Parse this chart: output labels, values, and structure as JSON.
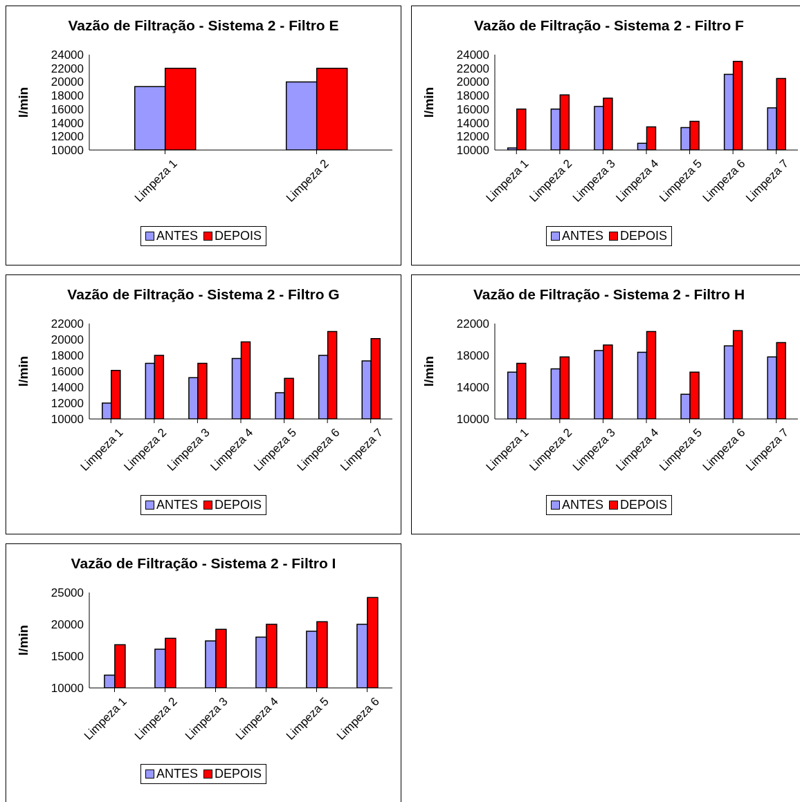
{
  "chart_data": [
    {
      "type": "bar",
      "title": "Vazão de Filtração - Sistema 2 - Filtro E",
      "ylabel": "l/min",
      "categories": [
        "Limpeza 1",
        "Limpeza 2"
      ],
      "series": [
        {
          "name": "ANTES",
          "color": "#9999ff",
          "values": [
            19300,
            20000
          ]
        },
        {
          "name": "DEPOIS",
          "color": "#ff0000",
          "values": [
            22000,
            22000
          ]
        }
      ],
      "ylim": [
        10000,
        24000
      ],
      "yticks": [
        10000,
        12000,
        14000,
        16000,
        18000,
        20000,
        22000,
        24000
      ],
      "grid": false,
      "legend": "bottom"
    },
    {
      "type": "bar",
      "title": "Vazão de Filtração - Sistema 2 - Filtro F",
      "ylabel": "l/min",
      "categories": [
        "Limpeza 1",
        "Limpeza 2",
        "Limpeza 3",
        "Limpeza 4",
        "Limpeza 5",
        "Limpeza 6",
        "Limpeza 7"
      ],
      "series": [
        {
          "name": "ANTES",
          "color": "#9999ff",
          "values": [
            10300,
            16000,
            16400,
            11000,
            13300,
            21100,
            16200
          ]
        },
        {
          "name": "DEPOIS",
          "color": "#ff0000",
          "values": [
            16000,
            18100,
            17600,
            13400,
            14200,
            23000,
            20500
          ]
        }
      ],
      "ylim": [
        10000,
        24000
      ],
      "yticks": [
        10000,
        12000,
        14000,
        16000,
        18000,
        20000,
        22000,
        24000
      ],
      "grid": false,
      "legend": "bottom"
    },
    {
      "type": "bar",
      "title": "Vazão de Filtração - Sistema 2 - Filtro G",
      "ylabel": "l/min",
      "categories": [
        "Limpeza 1",
        "Limpeza 2",
        "Limpeza 3",
        "Limpeza 4",
        "Limpeza 5",
        "Limpeza 6",
        "Limpeza 7"
      ],
      "series": [
        {
          "name": "ANTES",
          "color": "#9999ff",
          "values": [
            12000,
            17000,
            15200,
            17600,
            13300,
            18000,
            17300
          ]
        },
        {
          "name": "DEPOIS",
          "color": "#ff0000",
          "values": [
            16100,
            18000,
            17000,
            19700,
            15100,
            21000,
            20100
          ]
        }
      ],
      "ylim": [
        10000,
        22000
      ],
      "yticks": [
        10000,
        12000,
        14000,
        16000,
        18000,
        20000,
        22000
      ],
      "grid": false,
      "legend": "bottom"
    },
    {
      "type": "bar",
      "title": "Vazão de Filtração - Sistema 2 - Filtro H",
      "ylabel": "l/min",
      "categories": [
        "Limpeza 1",
        "Limpeza 2",
        "Limpeza 3",
        "Limpeza 4",
        "Limpeza 5",
        "Limpeza 6",
        "Limpeza 7"
      ],
      "series": [
        {
          "name": "ANTES",
          "color": "#9999ff",
          "values": [
            15900,
            16300,
            18600,
            18400,
            13100,
            19200,
            17800
          ]
        },
        {
          "name": "DEPOIS",
          "color": "#ff0000",
          "values": [
            17000,
            17800,
            19300,
            21000,
            15900,
            21100,
            19600
          ]
        }
      ],
      "ylim": [
        10000,
        22000
      ],
      "yticks": [
        10000,
        14000,
        18000,
        22000
      ],
      "grid": false,
      "legend": "bottom"
    },
    {
      "type": "bar",
      "title": "Vazão de Filtração - Sistema 2 - Filtro I",
      "ylabel": "l/min",
      "categories": [
        "Limpeza 1",
        "Limpeza 2",
        "Limpeza 3",
        "Limpeza 4",
        "Limpeza 5",
        "Limpeza 6"
      ],
      "series": [
        {
          "name": "ANTES",
          "color": "#9999ff",
          "values": [
            12000,
            16100,
            17400,
            18000,
            18900,
            20000
          ]
        },
        {
          "name": "DEPOIS",
          "color": "#ff0000",
          "values": [
            16800,
            17800,
            19200,
            20000,
            20400,
            24200
          ]
        }
      ],
      "ylim": [
        10000,
        25000
      ],
      "yticks": [
        10000,
        15000,
        20000,
        25000
      ],
      "grid": false,
      "legend": "bottom"
    }
  ]
}
